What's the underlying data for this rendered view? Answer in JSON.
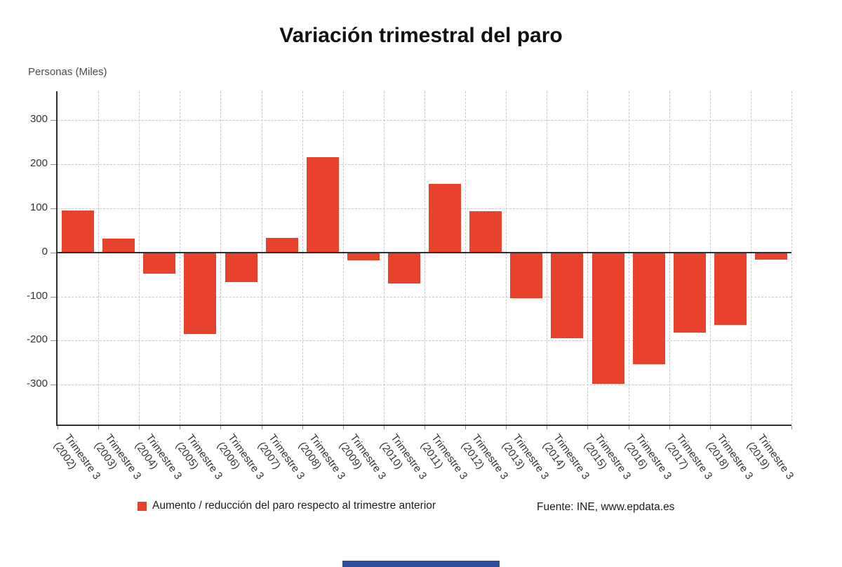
{
  "page": {
    "background": "#ffffff"
  },
  "chart_data": {
    "type": "bar",
    "title": "Variación trimestral del paro",
    "ylabel": "Personas (Miles)",
    "categories": [
      "Trimestre 3 (2002)",
      "Trimestre 3 (2003)",
      "Trimestre 3 (2004)",
      "Trimestre 3 (2005)",
      "Trimestre 3 (2006)",
      "Trimestre 3 (2007)",
      "Trimestre 3 (2008)",
      "Trimestre 3 (2009)",
      "Trimestre 3 (2010)",
      "Trimestre 3 (2011)",
      "Trimestre 3 (2012)",
      "Trimestre 3 (2013)",
      "Trimestre 3 (2014)",
      "Trimestre 3 (2015)",
      "Trimestre 3 (2016)",
      "Trimestre 3 (2017)",
      "Trimestre 3 (2018)",
      "Trimestre 3 (2019)"
    ],
    "values": [
      94,
      32,
      -48,
      -185,
      -68,
      33,
      215,
      -18,
      -70,
      155,
      93,
      -104,
      -195,
      -298,
      -254,
      -182,
      -164,
      -16
    ],
    "yticks": [
      300,
      200,
      100,
      0,
      -100,
      -200,
      -300
    ],
    "ylim": [
      -390,
      365
    ],
    "grid": true,
    "bar_color": "#e8412c",
    "legend": {
      "label": "Aumento / reducción del paro respecto al trimestre anterior",
      "position": "bottom"
    },
    "source": "Fuente: INE, www.epdata.es"
  },
  "footer": {
    "bar_color": "#2d4f9b"
  }
}
